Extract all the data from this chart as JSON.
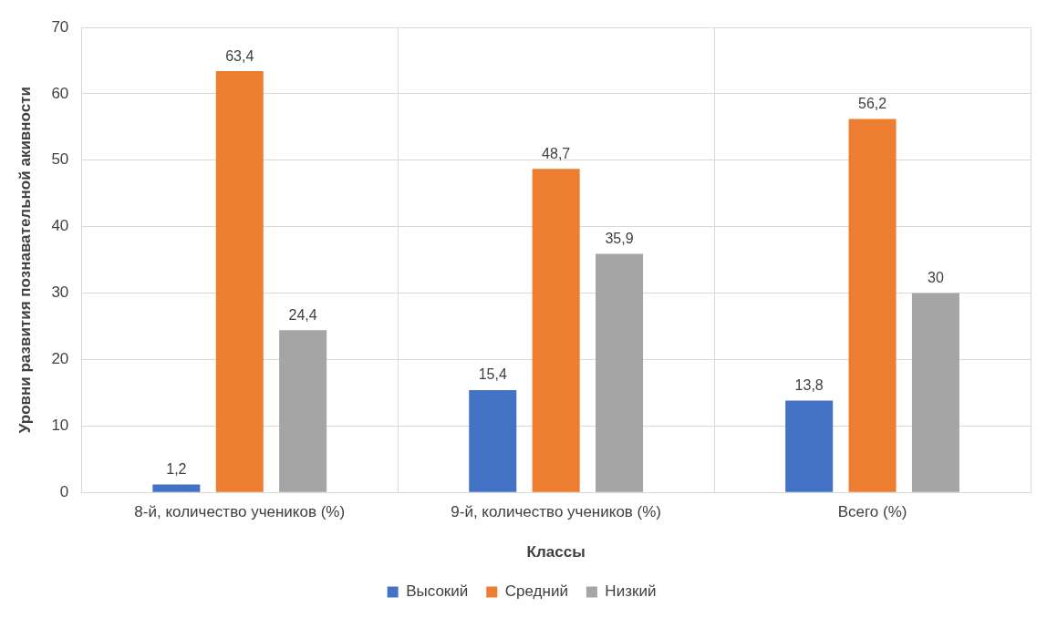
{
  "chart_data": {
    "type": "bar",
    "xlabel": "Классы",
    "ylabel": "Уровни развития познавательной акивности",
    "categories": [
      "8-й, количество учеников (%)",
      "9-й, количество учеников (%)",
      "Всего (%)"
    ],
    "series": [
      {
        "name": "Высокий",
        "color": "#4472c4",
        "values": [
          1.2,
          15.4,
          13.8
        ],
        "value_labels": [
          "1,2",
          "15,4",
          "13,8"
        ]
      },
      {
        "name": "Средний",
        "color": "#ed7d31",
        "values": [
          63.4,
          48.7,
          56.2
        ],
        "value_labels": [
          "63,4",
          "48,7",
          "56,2"
        ]
      },
      {
        "name": "Низкий",
        "color": "#a5a5a5",
        "values": [
          24.4,
          35.9,
          30
        ],
        "value_labels": [
          "24,4",
          "35,9",
          "30"
        ]
      }
    ],
    "ylim": [
      0,
      70
    ],
    "yticks": [
      0,
      10,
      20,
      30,
      40,
      50,
      60,
      70
    ],
    "grid": true,
    "legend": "bottom"
  }
}
